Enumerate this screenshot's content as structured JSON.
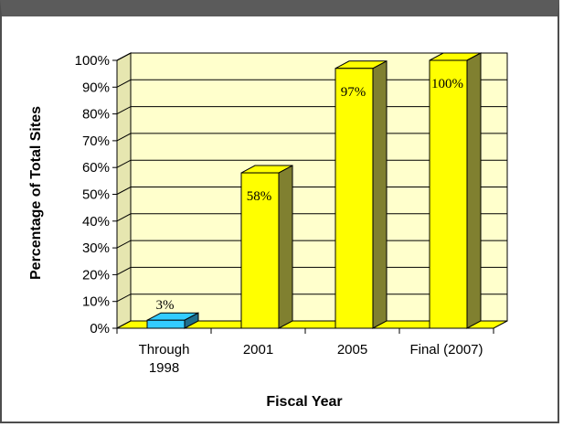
{
  "chart_data": {
    "type": "bar",
    "categories": [
      [
        "Through",
        "1998"
      ],
      [
        "2001"
      ],
      [
        "2005"
      ],
      [
        "Final (2007)"
      ]
    ],
    "values": [
      3,
      58,
      97,
      100
    ],
    "data_labels": [
      "3%",
      "58%",
      "97%",
      "100%"
    ],
    "xlabel": "Fiscal Year",
    "ylabel": "Percentage of Total Sites",
    "ylim": [
      0,
      100
    ],
    "yticks": [
      "0%",
      "10%",
      "20%",
      "30%",
      "40%",
      "50%",
      "60%",
      "70%",
      "80%",
      "90%",
      "100%"
    ],
    "grid": true,
    "legend": "none",
    "colors": {
      "plot_background": "#ffffcc",
      "bar_highlight": "#33ccff",
      "bar_default": "#ffff00",
      "bar_highlight_side": "#1f6e8c",
      "bar_default_side": "#808030"
    }
  }
}
